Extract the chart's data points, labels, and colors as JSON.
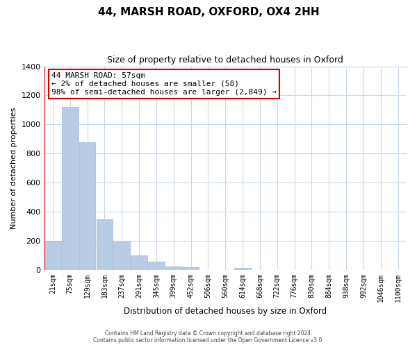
{
  "title": "44, MARSH ROAD, OXFORD, OX4 2HH",
  "subtitle": "Size of property relative to detached houses in Oxford",
  "xlabel": "Distribution of detached houses by size in Oxford",
  "ylabel": "Number of detached properties",
  "bar_labels": [
    "21sqm",
    "75sqm",
    "129sqm",
    "183sqm",
    "237sqm",
    "291sqm",
    "345sqm",
    "399sqm",
    "452sqm",
    "506sqm",
    "560sqm",
    "614sqm",
    "668sqm",
    "722sqm",
    "776sqm",
    "830sqm",
    "884sqm",
    "938sqm",
    "992sqm",
    "1046sqm",
    "1100sqm"
  ],
  "bar_values": [
    200,
    1120,
    880,
    350,
    195,
    100,
    57,
    25,
    18,
    0,
    0,
    13,
    0,
    0,
    0,
    0,
    0,
    0,
    0,
    0,
    0
  ],
  "bar_color": "#b8cce4",
  "bar_edge_color": "#a0b8d8",
  "annotation_title": "44 MARSH ROAD: 57sqm",
  "annotation_line1": "← 2% of detached houses are smaller (58)",
  "annotation_line2": "98% of semi-detached houses are larger (2,849) →",
  "annotation_box_color": "#ffffff",
  "annotation_box_edge": "#cc0000",
  "property_line_color": "#cc0000",
  "ylim": [
    0,
    1400
  ],
  "yticks": [
    0,
    200,
    400,
    600,
    800,
    1000,
    1200,
    1400
  ],
  "footer_line1": "Contains HM Land Registry data © Crown copyright and database right 2024.",
  "footer_line2": "Contains public sector information licensed under the Open Government Licence v3.0.",
  "grid_color": "#c8d8e8"
}
